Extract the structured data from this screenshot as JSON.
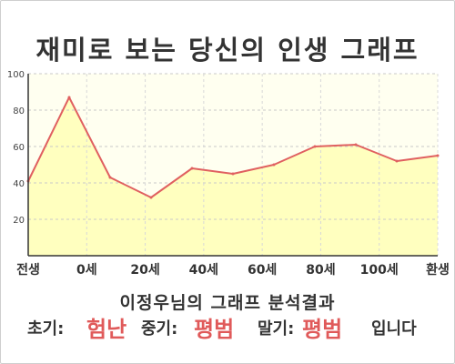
{
  "chart_data": {
    "type": "area",
    "title": "재미로 보는 당신의 인생 그래프",
    "x_ticks": [
      "전생",
      "0세",
      "20세",
      "40세",
      "60세",
      "80세",
      "100세",
      "환생"
    ],
    "y_ticks": [
      20,
      40,
      60,
      80,
      100
    ],
    "ylim": [
      0,
      100
    ],
    "grid": true,
    "series": [
      {
        "values": [
          41,
          87,
          43,
          32,
          48,
          45,
          50,
          60,
          61,
          52,
          55
        ]
      }
    ],
    "line_color": "#e06060",
    "fill_color": "#ffffbf",
    "plot_background": "#fffff0"
  },
  "result": {
    "title": "이정우님의 그래프 분석결과",
    "early_label": "초기:",
    "early_value": "험난",
    "mid_label": "중기:",
    "mid_value": "평범",
    "late_label": "말기:",
    "late_value": "평범",
    "ending": "입니다"
  }
}
